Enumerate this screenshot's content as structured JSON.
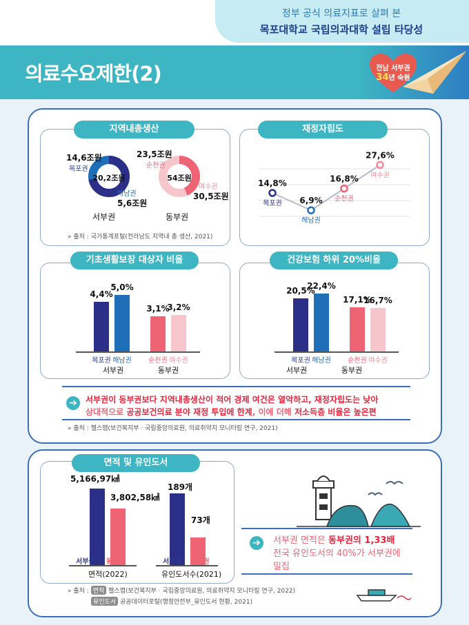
{
  "header": {
    "subtitle": "정부 공식 의료지표로 살펴 본",
    "headline": "목포대학교 국립의과대학 설립 타당성"
  },
  "page_title": "의료수요제한(2)",
  "badge": {
    "line1": "전남 서부권",
    "number": "34",
    "line2": "년 숙원"
  },
  "grdp": {
    "title": "지역내총생산",
    "west": {
      "center": "20,2조원",
      "mokpo_value": "14,6조원",
      "mokpo_label": "목포권",
      "haenam_label": "해남권",
      "haenam_value": "5,6조원",
      "caption": "서부권"
    },
    "east": {
      "center": "54조원",
      "suncheon_value": "23,5조원",
      "suncheon_label": "순천권",
      "yeosu_label": "여수권",
      "yeosu_value": "30,5조원",
      "caption": "동부권"
    },
    "source": "출처 : 국가통계포털(전라남도 지역내 총 생산, 2021)"
  },
  "fiscal": {
    "title": "재정자립도",
    "points": [
      {
        "value": "14,8%",
        "label": "목포권"
      },
      {
        "value": "6,9%",
        "label": "해남권"
      },
      {
        "value": "16,8%",
        "label": "순천권"
      },
      {
        "value": "27,6%",
        "label": "여수권"
      }
    ]
  },
  "basic_living": {
    "title": "기초생활보장 대상자 비율",
    "bars": [
      {
        "value": "4,4%",
        "label": "목포권"
      },
      {
        "value": "5,0%",
        "label": "해남권"
      },
      {
        "value": "3,1%",
        "label": "순천권"
      },
      {
        "value": "3,2%",
        "label": "여수권"
      }
    ],
    "groups": [
      "서부권",
      "동부권"
    ]
  },
  "insurance": {
    "title": "건강보험 하위 20%비율",
    "bars": [
      {
        "value": "20,5%",
        "label": "목포권"
      },
      {
        "value": "22,4%",
        "label": "해남권"
      },
      {
        "value": "17,1%",
        "label": "순천권"
      },
      {
        "value": "16,7%",
        "label": "여수권"
      }
    ],
    "groups": [
      "서부권",
      "동부권"
    ]
  },
  "conclusion1": {
    "line1": "서부권이 동부권보다 지역내총생산이 적어 경제 여건은 열악하고, 재정자립도는 낮아",
    "line2_a": "상대적으로 ",
    "line2_b": "공공보건의료 분야 재정 투입에 한계",
    "line2_c": ", 이에 더해 ",
    "line2_d": "저소득층 비율은 높은편"
  },
  "source2": "출처 : 헬스맵(보건복지부 · 국립중앙의료원, 의료취약지 모니터링 연구, 2021)",
  "area": {
    "title": "면적 및 유인도서",
    "area_chart": {
      "west_value": "5,166,97㎢",
      "east_value": "3,802,58㎢",
      "west_label": "서부권",
      "east_label": "동부권",
      "caption": "면적(2022)"
    },
    "island_chart": {
      "west_value": "189개",
      "east_value": "73개",
      "west_label": "서부권",
      "east_label": "동부권",
      "caption": "유인도서수(2021)"
    },
    "conclusion": {
      "l1_a": "서부권 면적은 ",
      "l1_b": "동부권의 1,33배",
      "l2": "전국 유인도서의 40%가 서부권에",
      "l3": "밀집"
    },
    "source_prefix": "출처 :",
    "source_tag1": "면적",
    "source_text1": "헬스맵(보건복지부 · 국립중앙의료원, 의료취약지 모니터링 연구, 2022)",
    "source_tag2": "유인도서",
    "source_text2": "공공데이터포털(행정안전부_유인도서 현황, 2021)"
  },
  "colors": {
    "teal": "#3db5c3",
    "navy": "#2c2f87",
    "blue": "#1e6fb8",
    "pink": "#ee6474",
    "light_pink": "#f7c6cc",
    "red_text": "#e8243c",
    "border": "#3b6eb8"
  },
  "chart_data": [
    {
      "type": "pie",
      "title": "지역내총생산",
      "categories": [
        "목포권",
        "해남권"
      ],
      "values": [
        14.6,
        5.6
      ],
      "total": 20.2,
      "unit": "조원"
    },
    {
      "type": "pie",
      "title": "지역내총생산",
      "categories": [
        "순천권",
        "여수권"
      ],
      "values": [
        23.5,
        30.5
      ],
      "total": 54,
      "unit": "조원"
    },
    {
      "type": "line",
      "title": "재정자립도",
      "categories": [
        "목포권",
        "해남권",
        "순천권",
        "여수권"
      ],
      "values": [
        14.8,
        6.9,
        16.8,
        27.6
      ],
      "unit": "%"
    },
    {
      "type": "bar",
      "title": "기초생활보장 대상자 비율",
      "categories": [
        "목포권",
        "해남권",
        "순천권",
        "여수권"
      ],
      "values": [
        4.4,
        5.0,
        3.1,
        3.2
      ],
      "unit": "%"
    },
    {
      "type": "bar",
      "title": "건강보험 하위 20%비율",
      "categories": [
        "목포권",
        "해남권",
        "순천권",
        "여수권"
      ],
      "values": [
        20.5,
        22.4,
        17.1,
        16.7
      ],
      "unit": "%"
    },
    {
      "type": "bar",
      "title": "면적(2022)",
      "categories": [
        "서부권",
        "동부권"
      ],
      "values": [
        5166.97,
        3802.58
      ],
      "unit": "㎢"
    },
    {
      "type": "bar",
      "title": "유인도서수(2021)",
      "categories": [
        "서부권",
        "동부권"
      ],
      "values": [
        189,
        73
      ],
      "unit": "개"
    }
  ]
}
